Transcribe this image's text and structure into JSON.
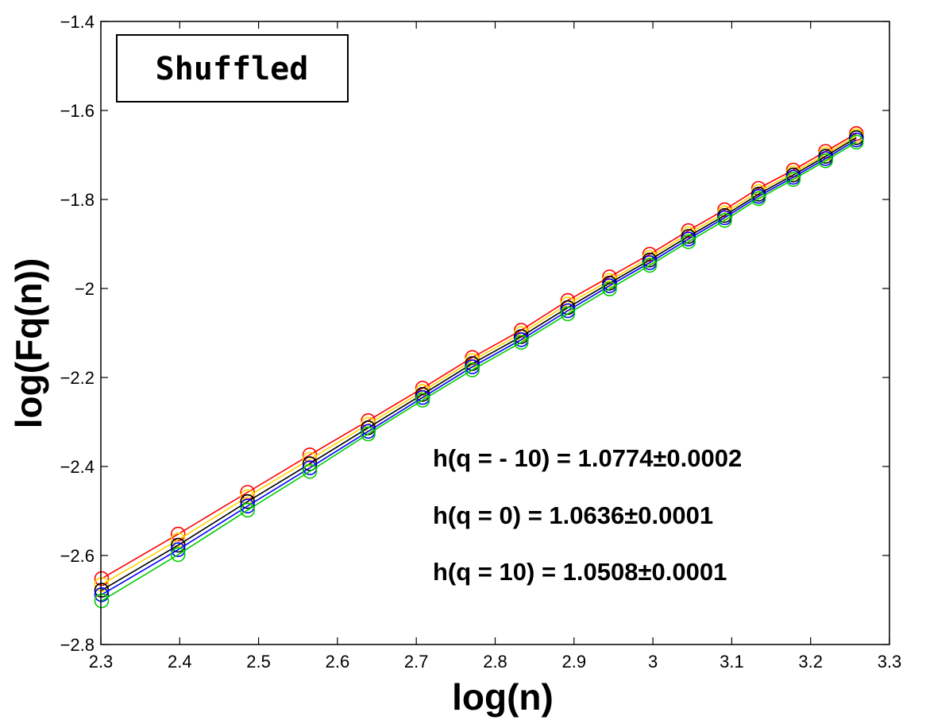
{
  "chart_data": {
    "type": "line",
    "title": "",
    "xlabel": "log(n)",
    "ylabel": "log(Fq(n))",
    "xlim": [
      2.3,
      3.3
    ],
    "ylim": [
      -2.8,
      -1.4
    ],
    "xticks": [
      2.3,
      2.4,
      2.5,
      2.6,
      2.7,
      2.8,
      2.9,
      3.0,
      3.1,
      3.2,
      3.3
    ],
    "xtick_labels": [
      "2.3",
      "2.4",
      "2.5",
      "2.6",
      "2.7",
      "2.8",
      "2.9",
      "3",
      "3.1",
      "3.2",
      "3.3"
    ],
    "yticks": [
      -2.8,
      -2.6,
      -2.4,
      -2.2,
      -2.0,
      -1.8,
      -1.6,
      -1.4
    ],
    "ytick_labels": [
      "−2.8",
      "−2.6",
      "−2.4",
      "−2.2",
      "−2",
      "−1.8",
      "−1.6",
      "−1.4"
    ],
    "grid": false,
    "legend_box_label": "Shuffled",
    "x": [
      2.301,
      2.398,
      2.486,
      2.565,
      2.639,
      2.708,
      2.771,
      2.833,
      2.892,
      2.945,
      2.996,
      3.045,
      3.091,
      3.134,
      3.178,
      3.219,
      3.258
    ],
    "series": [
      {
        "name": "red",
        "color": "#ff0000",
        "values": [
          -2.652,
          -2.552,
          -2.458,
          -2.374,
          -2.297,
          -2.224,
          -2.155,
          -2.094,
          -2.027,
          -1.974,
          -1.923,
          -1.87,
          -1.823,
          -1.775,
          -1.734,
          -1.692,
          -1.652
        ]
      },
      {
        "name": "yellow",
        "color": "#ffd400",
        "values": [
          -2.665,
          -2.565,
          -2.468,
          -2.384,
          -2.305,
          -2.231,
          -2.162,
          -2.101,
          -2.035,
          -1.982,
          -1.93,
          -1.877,
          -1.83,
          -1.782,
          -1.74,
          -1.698,
          -1.657
        ]
      },
      {
        "name": "black",
        "color": "#000000",
        "values": [
          -2.678,
          -2.577,
          -2.479,
          -2.394,
          -2.313,
          -2.238,
          -2.169,
          -2.108,
          -2.043,
          -1.988,
          -1.936,
          -1.883,
          -1.836,
          -1.788,
          -1.745,
          -1.703,
          -1.661
        ]
      },
      {
        "name": "blue",
        "color": "#0000ff",
        "values": [
          -2.688,
          -2.587,
          -2.489,
          -2.403,
          -2.321,
          -2.245,
          -2.176,
          -2.115,
          -2.05,
          -1.994,
          -1.942,
          -1.889,
          -1.841,
          -1.793,
          -1.75,
          -1.708,
          -1.666
        ]
      },
      {
        "name": "green",
        "color": "#00cc00",
        "values": [
          -2.702,
          -2.598,
          -2.498,
          -2.411,
          -2.327,
          -2.251,
          -2.183,
          -2.121,
          -2.057,
          -2.001,
          -1.948,
          -1.895,
          -1.847,
          -1.798,
          -1.755,
          -1.713,
          -1.671
        ]
      }
    ],
    "annotations": [
      "h(q = - 10) = 1.0774±0.0002",
      "h(q = 0) = 1.0636±0.0001",
      "h(q = 10) = 1.0508±0.0001"
    ]
  }
}
